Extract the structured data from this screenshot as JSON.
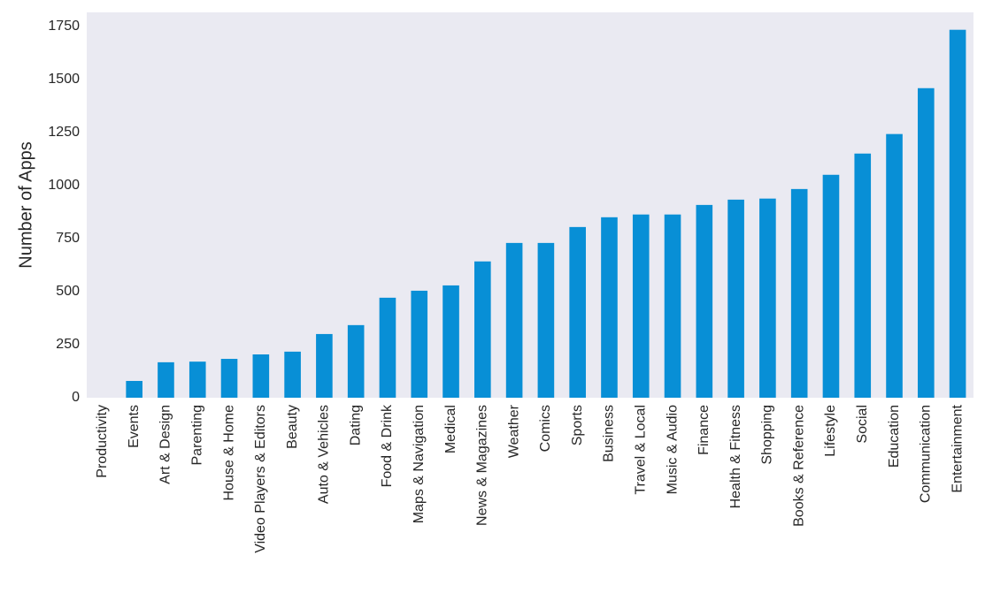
{
  "chart_data": {
    "type": "bar",
    "y_label": "Number of Apps",
    "categories": [
      "Productivity",
      "Events",
      "Art & Design",
      "Parenting",
      "House & Home",
      "Video Players & Editors",
      "Beauty",
      "Auto & Vehicles",
      "Dating",
      "Food & Drink",
      "Maps & Navigation",
      "Medical",
      "News & Magazines",
      "Weather",
      "Comics",
      "Sports",
      "Business",
      "Travel & Local",
      "Music & Audio",
      "Finance",
      "Health & Fitness",
      "Shopping",
      "Books & Reference",
      "Lifestyle",
      "Social",
      "Education",
      "Communication",
      "Entertainment"
    ],
    "values": [
      0,
      79,
      167,
      170,
      183,
      204,
      217,
      300,
      342,
      471,
      504,
      529,
      642,
      729,
      729,
      804,
      850,
      863,
      863,
      908,
      933,
      938,
      983,
      1050,
      1150,
      1242,
      1458,
      1733
    ],
    "color": "#088fd6",
    "ylim": [
      0,
      1815
    ],
    "yticks": [
      0,
      250,
      500,
      750,
      1000,
      1250,
      1500,
      1750
    ],
    "grid": false
  }
}
